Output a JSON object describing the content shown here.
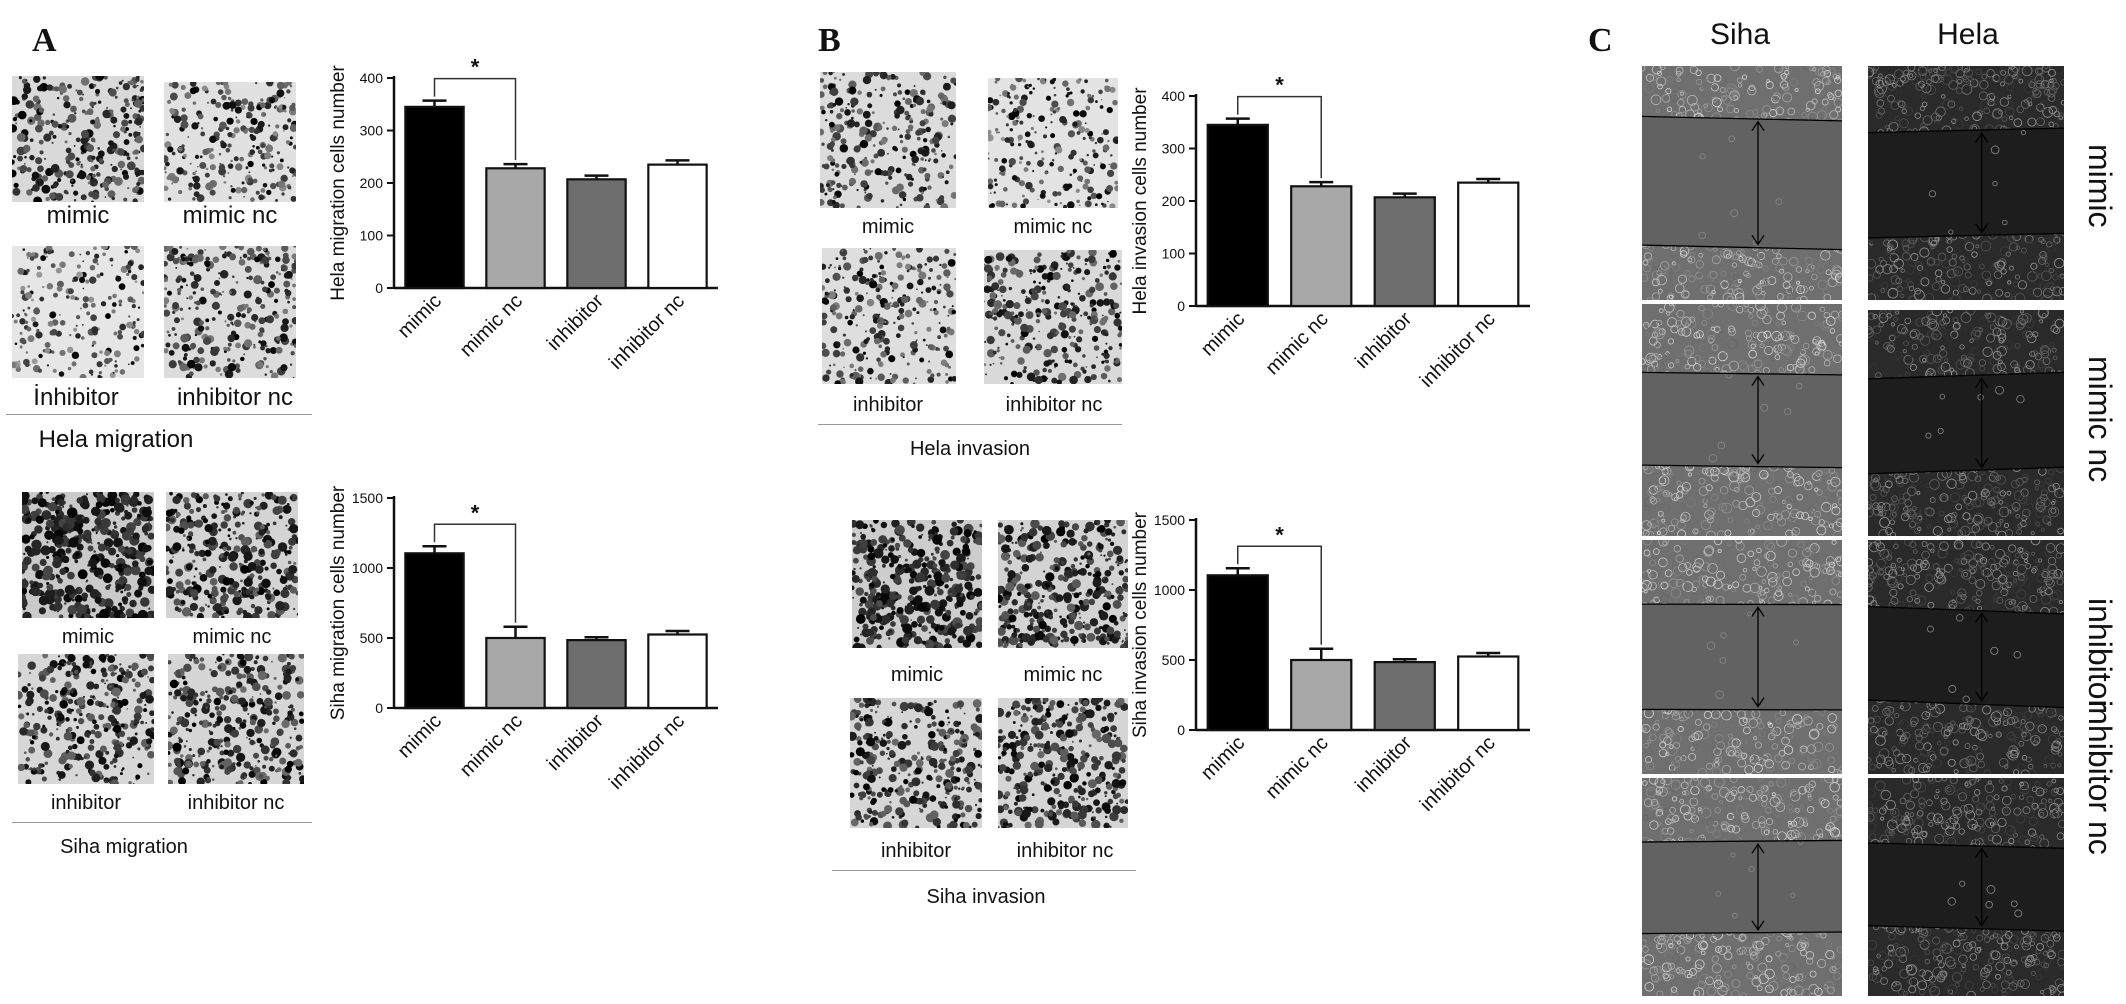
{
  "panels": {
    "a_label": "A",
    "b_label": "B",
    "c_label": "C"
  },
  "panel_a": {
    "hela_migration": {
      "title": "Hela migration",
      "captions": [
        "mimic",
        "mimic nc",
        "İnhibitor",
        "inhibitor nc"
      ]
    },
    "siha_migration": {
      "title": "Siha migration",
      "captions": [
        "mimic",
        "mimic nc",
        "inhibitor",
        "inhibitor nc"
      ]
    }
  },
  "panel_b": {
    "hela_invasion": {
      "title": "Hela invasion",
      "captions": [
        "mimic",
        "mimic nc",
        "inhibitor",
        "inhibitor nc"
      ]
    },
    "siha_invasion": {
      "title": "Siha invasion",
      "captions": [
        "mimic",
        "mimic nc",
        "inhibitor",
        "inhibitor nc"
      ]
    }
  },
  "panel_c": {
    "columns": [
      "Siha",
      "Hela"
    ],
    "rows": [
      "mimic",
      "mimic nc",
      "inhibitor",
      "inhibitor nc"
    ]
  },
  "colors": {
    "mimic": "#000000",
    "mimic_nc": "#a8a8a8",
    "inhibitor": "#6e6e6e",
    "inhibitor_nc": "#ffffff"
  },
  "chart_data": [
    {
      "id": "hela-migration",
      "type": "bar",
      "ylabel": "Hela migration cells number",
      "categories": [
        "mimic",
        "mimic nc",
        "inhibitor",
        "inhibitor nc"
      ],
      "values": [
        345,
        228,
        207,
        235
      ],
      "errors": [
        12,
        8,
        7,
        8
      ],
      "ylim": [
        0,
        400
      ],
      "yticks": [
        "0",
        "100",
        "200",
        "300",
        "400"
      ],
      "significance": {
        "from": 0,
        "to": 1,
        "label": "*"
      }
    },
    {
      "id": "siha-migration",
      "type": "bar",
      "ylabel": "Siha migration cells number",
      "categories": [
        "mimic",
        "mimic nc",
        "inhibitor",
        "inhibitor nc"
      ],
      "values": [
        1105,
        500,
        485,
        525
      ],
      "errors": [
        50,
        80,
        20,
        25
      ],
      "ylim": [
        0,
        1500
      ],
      "yticks": [
        "0",
        "500",
        "1000",
        "1500"
      ],
      "significance": {
        "from": 0,
        "to": 1,
        "label": "*"
      }
    },
    {
      "id": "hela-invasion",
      "type": "bar",
      "ylabel": "Hela invasion cells number",
      "categories": [
        "mimic",
        "mimic nc",
        "inhibitor",
        "inhibitor nc"
      ],
      "values": [
        345,
        228,
        207,
        235
      ],
      "errors": [
        12,
        8,
        7,
        7
      ],
      "ylim": [
        0,
        400
      ],
      "yticks": [
        "0",
        "100",
        "200",
        "300",
        "400"
      ],
      "significance": {
        "from": 0,
        "to": 1,
        "label": "*"
      }
    },
    {
      "id": "siha-invasion",
      "type": "bar",
      "ylabel": "Siha invasion cells number",
      "categories": [
        "mimic",
        "mimic nc",
        "inhibitor",
        "inhibitor nc"
      ],
      "values": [
        1105,
        500,
        485,
        525
      ],
      "errors": [
        50,
        80,
        20,
        25
      ],
      "ylim": [
        0,
        1500
      ],
      "yticks": [
        "0",
        "500",
        "1000",
        "1500"
      ],
      "significance": {
        "from": 0,
        "to": 1,
        "label": "*"
      }
    }
  ]
}
